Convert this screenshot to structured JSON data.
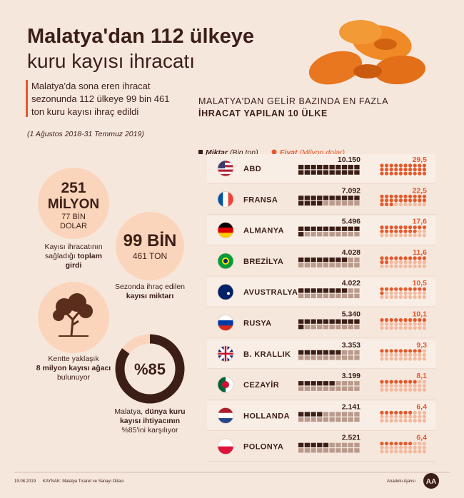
{
  "header": {
    "title_line1": "Malatya'dan 112 ülkeye",
    "title_line2": "kuru kayısı ihracatı",
    "summary": [
      "Malatya'da sona eren ihracat",
      "sezonunda 112 ülkeye 99 bin 461",
      "ton kuru kayısı ihraç edildi"
    ],
    "period": "(1 Ağustos 2018-31 Temmuz 2019)"
  },
  "stats": [
    {
      "lines": [
        "251",
        "MİLYON",
        "77 BİN",
        "DOLAR"
      ],
      "caption": [
        {
          "text": "Kayısı ihracatının"
        },
        {
          "text": "sağladığı ",
          "bold": "toplam"
        },
        {
          "bold": "girdi"
        }
      ]
    },
    {
      "lines": [
        "99 BİN",
        "461 TON"
      ],
      "caption": [
        {
          "text": "Sezonda ihraç edilen"
        },
        {
          "bold": "kayısı miktarı"
        }
      ]
    },
    {
      "lines": [],
      "caption": [
        {
          "text": "Kentte yaklaşık"
        },
        {
          "bold": "8 milyon kayısı ağacı"
        },
        {
          "text": "bulunuyor"
        }
      ]
    },
    {
      "value": 85,
      "label": "%85",
      "caption": [
        {
          "text": "Malatya, ",
          "bold": "dünya kuru"
        },
        {
          "bold": "kayısı ihtiyacının"
        },
        {
          "text": "%85'ini karşılıyor"
        }
      ]
    }
  ],
  "chart": {
    "title_line1": "MALATYA'DAN GELİR BAZINDA EN FAZLA",
    "title_line2": "İHRACAT YAPILAN 10 ÜLKE",
    "legend": [
      {
        "name": "Miktar",
        "unit": "(Bin ton)"
      },
      {
        "name": "Fiyat",
        "unit": "(Milyon dolar)"
      }
    ],
    "rows": [
      {
        "country": "ABD",
        "quantity": 10150,
        "quantity_label": "10.150",
        "price": 29.5,
        "price_label": "29,5"
      },
      {
        "country": "FRANSA",
        "quantity": 7092,
        "quantity_label": "7.092",
        "price": 22.5,
        "price_label": "22,5"
      },
      {
        "country": "ALMANYA",
        "quantity": 5496,
        "quantity_label": "5.496",
        "price": 17.6,
        "price_label": "17,6"
      },
      {
        "country": "BREZİLYA",
        "quantity": 4028,
        "quantity_label": "4.028",
        "price": 11.6,
        "price_label": "11,6"
      },
      {
        "country": "AVUSTRALYA",
        "quantity": 4022,
        "quantity_label": "4.022",
        "price": 10.5,
        "price_label": "10,5"
      },
      {
        "country": "RUSYA",
        "quantity": 5340,
        "quantity_label": "5.340",
        "price": 10.1,
        "price_label": "10,1"
      },
      {
        "country": "B. KRALLIK",
        "quantity": 3353,
        "quantity_label": "3.353",
        "price": 9.3,
        "price_label": "9,3"
      },
      {
        "country": "CEZAYİR",
        "quantity": 3199,
        "quantity_label": "3.199",
        "price": 8.1,
        "price_label": "8,1"
      },
      {
        "country": "HOLLANDA",
        "quantity": 2141,
        "quantity_label": "2.141",
        "price": 6.4,
        "price_label": "6,4"
      },
      {
        "country": "POLONYA",
        "quantity": 2521,
        "quantity_label": "2.521",
        "price": 6.4,
        "price_label": "6,4"
      }
    ]
  },
  "footer": {
    "date": "19.08.2019",
    "source": "KAYNAK: Malatya Ticaret ve Sanayi Odası",
    "agency": "Anadolu Ajansı",
    "logo": "AA"
  }
}
